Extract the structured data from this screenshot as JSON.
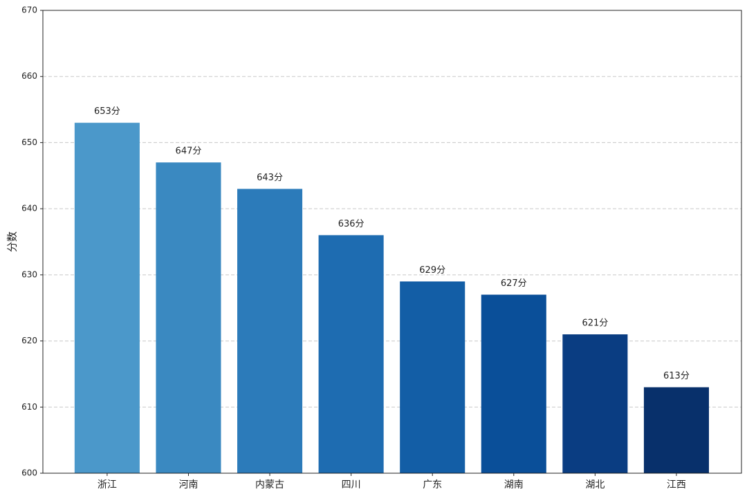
{
  "chart_data": {
    "type": "bar",
    "ylabel": "分数",
    "categories": [
      "浙江",
      "河南",
      "内蒙古",
      "四川",
      "广东",
      "湖南",
      "湖北",
      "江西"
    ],
    "values": [
      653,
      647,
      643,
      636,
      629,
      627,
      621,
      613
    ],
    "value_labels": [
      "653分",
      "647分",
      "643分",
      "636分",
      "629分",
      "627分",
      "621分",
      "613分"
    ],
    "colors": [
      "#4b98ca",
      "#3a89c1",
      "#2c7bba",
      "#1e6cb1",
      "#135ea6",
      "#0a4f99",
      "#0a3d82",
      "#08306b"
    ],
    "ylim": [
      600,
      670
    ],
    "yticks": [
      600,
      610,
      620,
      630,
      640,
      650,
      660,
      670
    ],
    "grid": true
  }
}
